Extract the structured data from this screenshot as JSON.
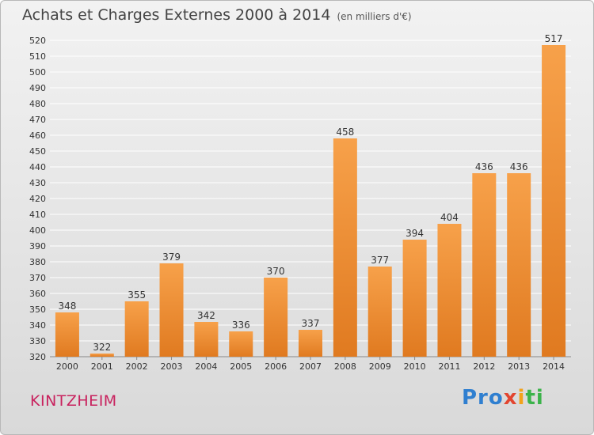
{
  "header": {
    "title": "Achats et Charges Externes 2000 à 2014",
    "unit": "(en milliers d'€)"
  },
  "footer": {
    "commune": "KINTZHEIM",
    "brand": [
      "Pro",
      "x",
      "i",
      "ti"
    ]
  },
  "colors": {
    "bar_light": "#f7a14a",
    "bar_dark": "#e07a20",
    "grid": "#ffffff",
    "axis_text": "#333333",
    "commune_text": "#c8225e"
  },
  "chart_data": {
    "type": "bar",
    "title": "Achats et Charges Externes 2000 à 2014",
    "subtitle": "(en milliers d'€)",
    "categories": [
      "2000",
      "2001",
      "2002",
      "2003",
      "2004",
      "2005",
      "2006",
      "2007",
      "2008",
      "2009",
      "2010",
      "2011",
      "2012",
      "2013",
      "2014"
    ],
    "values": [
      348,
      322,
      355,
      379,
      342,
      336,
      370,
      337,
      458,
      377,
      394,
      404,
      436,
      436,
      517
    ],
    "ylim": [
      320,
      520
    ],
    "ytick_step": 10,
    "grid": true,
    "data_labels": true
  }
}
